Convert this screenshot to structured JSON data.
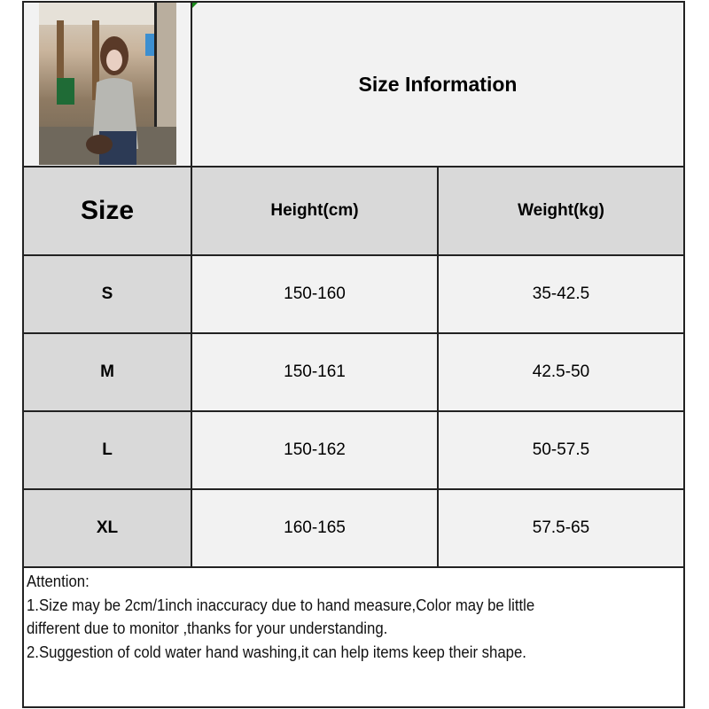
{
  "title": "Size Information",
  "photo": {
    "alt": "product photo of woman in grey cardigan and jeans"
  },
  "table": {
    "headers": [
      "Size",
      "Height(cm)",
      "Weight(kg)"
    ],
    "rows": [
      {
        "size": "S",
        "height": "150-160",
        "weight": "35-42.5"
      },
      {
        "size": "M",
        "height": "150-161",
        "weight": "42.5-50"
      },
      {
        "size": "L",
        "height": "150-162",
        "weight": "50-57.5"
      },
      {
        "size": "XL",
        "height": "160-165",
        "weight": "57.5-65"
      }
    ]
  },
  "notes": {
    "heading": "Attention:",
    "line1": "1.Size may be 2cm/1inch inaccuracy due to hand measure,Color may be little",
    "line1b": "different due to monitor ,thanks for your understanding.",
    "line2": "2.Suggestion of cold water hand washing,it can help items keep their shape."
  },
  "colors": {
    "header_bg": "#d9d9d9",
    "cell_bg": "#f2f2f2",
    "border": "#222222"
  }
}
